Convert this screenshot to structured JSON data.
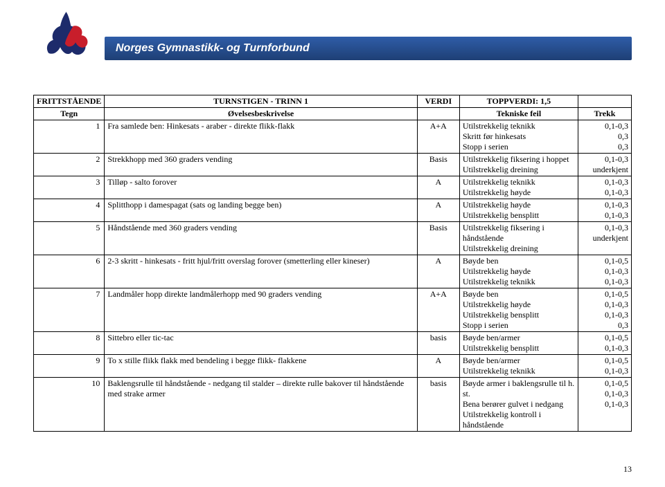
{
  "header": {
    "banner_text": "Norges Gymnastikk- og Turnforbund"
  },
  "table": {
    "hdr1": {
      "c1": "FRITTSTÅENDE",
      "c2": "TURNSTIGEN - TRINN 1",
      "c3": "VERDI",
      "c4": "TOPPVERDI: 1,5",
      "c5": ""
    },
    "hdr2": {
      "c1": "Tegn",
      "c2": "Øvelsesbeskrivelse",
      "c3": "",
      "c4": "Tekniske feil",
      "c5": "Trekk"
    },
    "rows": [
      {
        "n": "1",
        "desc": "Fra samlede ben: Hinkesats - araber - direkte flikk-flakk",
        "verdi": "A+A",
        "feil": "Utilstrekkelig teknikk\nSkritt før hinkesats\nStopp i serien",
        "trekk": "0,1-0,3\n0,3\n0,3"
      },
      {
        "n": "2",
        "desc": "Strekkhopp med 360 graders vending",
        "verdi": "Basis",
        "feil": "Utilstrekkelig fiksering i hoppet\nUtilstrekkelig dreining",
        "trekk": "0,1-0,3\nunderkjent"
      },
      {
        "n": "3",
        "desc": "Tilløp - salto forover",
        "verdi": "A",
        "feil": "Utilstrekkelig teknikk\nUtilstrekkelig høyde",
        "trekk": "0,1-0,3\n0,1-0,3"
      },
      {
        "n": "4",
        "desc": "Splitthopp i damespagat (sats og landing begge ben)",
        "verdi": "A",
        "feil": "Utilstrekkelig høyde\nUtilstrekkelig bensplitt",
        "trekk": "0,1-0,3\n0,1-0,3"
      },
      {
        "n": "5",
        "desc": "Håndstående med 360 graders vending",
        "verdi": "Basis",
        "feil": "Utilstrekkelig fiksering i håndstående\nUtilstrekkelig dreining",
        "trekk": "0,1-0,3\nunderkjent"
      },
      {
        "n": "6",
        "desc": "2-3 skritt - hinkesats - fritt hjul/fritt overslag forover (smetterling eller kineser)",
        "verdi": "A",
        "feil": "Bøyde ben\nUtilstrekkelig høyde\nUtilstrekkelig teknikk",
        "trekk": "0,1-0,5\n0,1-0,3\n0,1-0,3"
      },
      {
        "n": "7",
        "desc": "Landmåler hopp direkte landmålerhopp med 90 graders vending",
        "verdi": "A+A",
        "feil": "Bøyde ben\nUtilstrekkelig høyde\nUtilstrekkelig bensplitt\nStopp i serien",
        "trekk": "0,1-0,5\n0,1-0,3\n0,1-0,3\n0,3"
      },
      {
        "n": "8",
        "desc": "Sittebro eller tic-tac",
        "verdi": "basis",
        "feil": "Bøyde ben/armer\nUtilstrekkelig bensplitt",
        "trekk": "0,1-0,5\n0,1-0,3"
      },
      {
        "n": "9",
        "desc": "To x stille flikk flakk med bendeling i begge flikk- flakkene",
        "verdi": "A",
        "feil": "Bøyde ben/armer\nUtilstrekkelig teknikk",
        "trekk": "0,1-0,5\n0,1-0,3"
      },
      {
        "n": "10",
        "desc": "Baklengsrulle til håndstående  - nedgang til stalder – direkte rulle bakover til håndstående med strake armer",
        "verdi": "basis",
        "feil": "Bøyde armer i baklengsrulle til h. st.\nBena berører gulvet i nedgang\nUtilstrekkelig kontroll i håndstående",
        "trekk": "0,1-0,5\n0,1-0,3\n0,1-0,3"
      }
    ]
  },
  "page_number": "13",
  "colors": {
    "banner_start": "#2f5da8",
    "banner_end": "#1e3f75",
    "logo_blue": "#1d2b6b",
    "logo_red": "#c81e2b",
    "border": "#000000",
    "bg": "#ffffff"
  }
}
